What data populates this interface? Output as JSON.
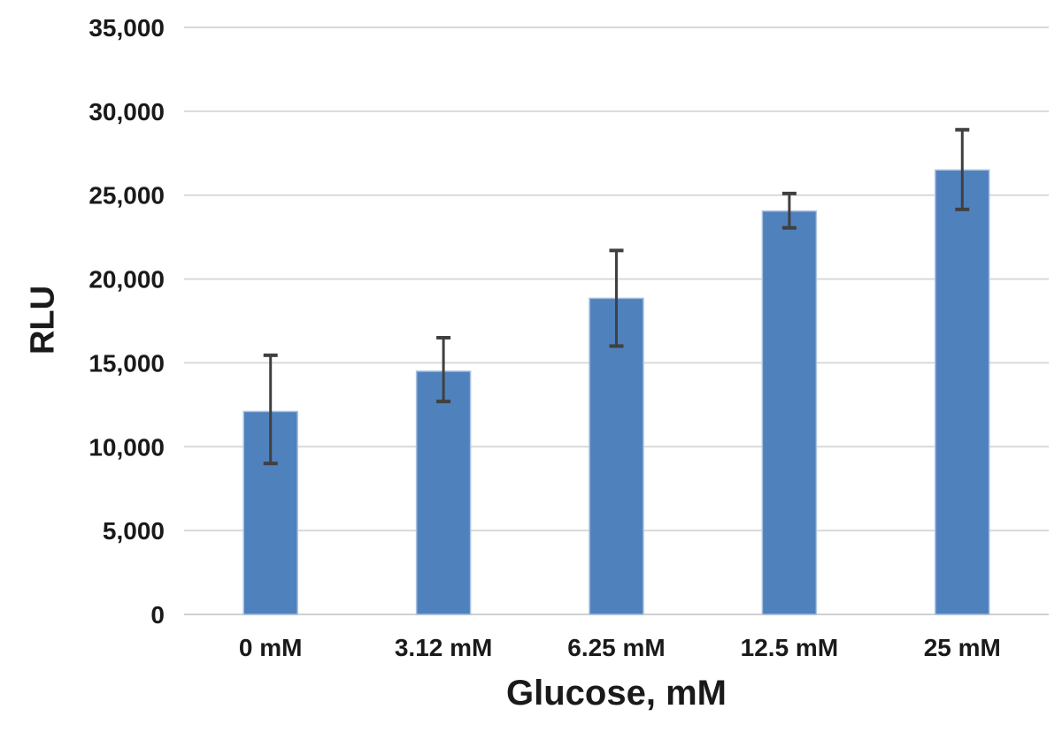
{
  "chart_data": {
    "type": "bar",
    "title": "",
    "xlabel": "Glucose, mM",
    "ylabel": "RLU",
    "categories": [
      "0 mM",
      "3.12 mM",
      "6.25 mM",
      "12.5 mM",
      "25 mM"
    ],
    "series": [
      {
        "name": "RLU",
        "values": [
          12100,
          14500,
          18850,
          24050,
          26500
        ],
        "error_upper": [
          15450,
          16500,
          21700,
          25100,
          28900
        ],
        "error_lower": [
          9000,
          12700,
          16000,
          23050,
          24150
        ]
      }
    ],
    "ylim": [
      0,
      35000
    ],
    "yticks": [
      {
        "value": 0,
        "label": "0"
      },
      {
        "value": 5000,
        "label": "5,000"
      },
      {
        "value": 10000,
        "label": "10,000"
      },
      {
        "value": 15000,
        "label": "15,000"
      },
      {
        "value": 20000,
        "label": "20,000"
      },
      {
        "value": 25000,
        "label": "25,000"
      },
      {
        "value": 30000,
        "label": "30,000"
      },
      {
        "value": 35000,
        "label": "35,000"
      }
    ],
    "grid": true,
    "legend": "none"
  },
  "colors": {
    "background": "#FFFFFF",
    "bar_fill": "#4F81BD",
    "bar_border": "#A9C1DE",
    "error_bar": "#404040",
    "gridline": "#D9D9D9",
    "axis_line": "#D0D0D0",
    "text": "#1A1A1A"
  }
}
